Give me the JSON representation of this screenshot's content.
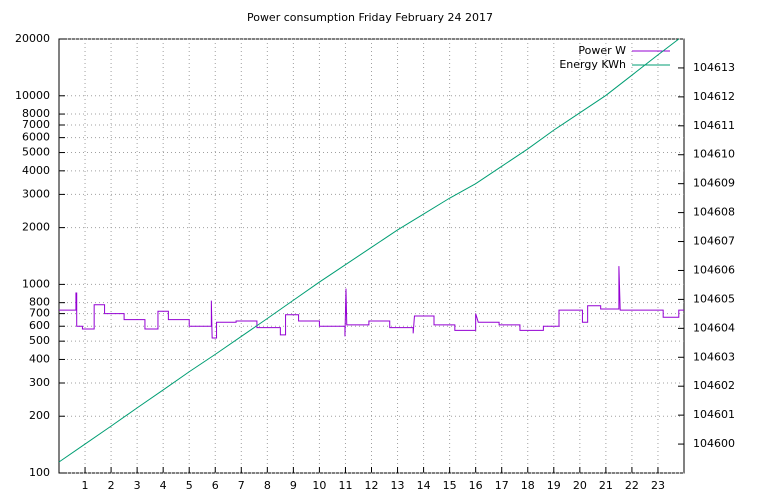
{
  "chart_data": {
    "type": "line",
    "title": "Power consumption Friday February 24 2017",
    "yscale": "log",
    "grid": true,
    "legend": "top-right",
    "xlim": [
      0,
      24
    ],
    "xticks": [
      1,
      2,
      3,
      4,
      5,
      6,
      7,
      8,
      9,
      10,
      11,
      12,
      13,
      14,
      15,
      16,
      17,
      18,
      19,
      20,
      21,
      22,
      23
    ],
    "ylim": [
      100,
      20000
    ],
    "yticks": [
      100,
      200,
      300,
      400,
      500,
      600,
      700,
      800,
      1000,
      2000,
      3000,
      4000,
      5000,
      6000,
      7000,
      8000,
      10000,
      20000
    ],
    "y2lim": [
      104599,
      104614
    ],
    "y2ticks": [
      104600,
      104601,
      104602,
      104603,
      104604,
      104605,
      104606,
      104607,
      104608,
      104609,
      104610,
      104611,
      104612,
      104613
    ],
    "series": [
      {
        "name": "Power W",
        "color": "#9400d3",
        "x": [
          0,
          0.65,
          0.65,
          0.68,
          0.68,
          0.9,
          0.9,
          1.35,
          1.35,
          1.75,
          1.75,
          2.5,
          2.5,
          3.3,
          3.3,
          3.8,
          3.8,
          4.2,
          4.2,
          5,
          5,
          5.85,
          5.85,
          5.88,
          6.05,
          6.05,
          6.8,
          6.8,
          7.6,
          7.6,
          8.5,
          8.5,
          8.7,
          8.7,
          9.2,
          9.2,
          10,
          10,
          10.98,
          10.98,
          11.02,
          11.05,
          11.9,
          11.9,
          12.7,
          12.7,
          13.6,
          13.6,
          13.65,
          14.4,
          14.4,
          15.2,
          15.2,
          16,
          16,
          16.1,
          16.9,
          16.9,
          17.7,
          17.7,
          18.6,
          18.6,
          19.2,
          19.2,
          20.1,
          20.1,
          20.3,
          20.3,
          20.8,
          20.8,
          21.5,
          21.5,
          21.55,
          23.2,
          23.2,
          23.8,
          23.8,
          24
        ],
        "values": [
          730,
          730,
          900,
          900,
          600,
          600,
          580,
          580,
          780,
          780,
          700,
          700,
          650,
          650,
          580,
          580,
          720,
          720,
          650,
          650,
          600,
          600,
          820,
          520,
          520,
          630,
          630,
          640,
          640,
          590,
          590,
          540,
          540,
          690,
          690,
          640,
          640,
          600,
          600,
          530,
          950,
          610,
          610,
          640,
          640,
          590,
          590,
          550,
          680,
          680,
          610,
          610,
          570,
          570,
          700,
          630,
          630,
          610,
          610,
          570,
          570,
          600,
          600,
          730,
          730,
          630,
          630,
          770,
          770,
          740,
          740,
          1250,
          730,
          730,
          670,
          670,
          730,
          730
        ]
      },
      {
        "name": "Energy KWh",
        "color": "#009e73",
        "axis": "y2",
        "x": [
          0,
          1,
          2,
          3,
          4,
          5,
          6,
          7,
          8,
          9,
          10,
          11,
          12,
          13,
          14,
          15,
          16,
          17,
          18,
          19,
          20,
          21,
          22,
          23,
          23.8
        ],
        "values": [
          104599.38,
          104600.0,
          104600.62,
          104601.25,
          104601.87,
          104602.5,
          104603.1,
          104603.72,
          104604.34,
          104604.97,
          104605.6,
          104606.2,
          104606.8,
          104607.4,
          104607.95,
          104608.5,
          104609.0,
          104609.6,
          104610.2,
          104610.85,
          104611.45,
          104612.05,
          104612.75,
          104613.45,
          104614.0
        ]
      }
    ]
  }
}
